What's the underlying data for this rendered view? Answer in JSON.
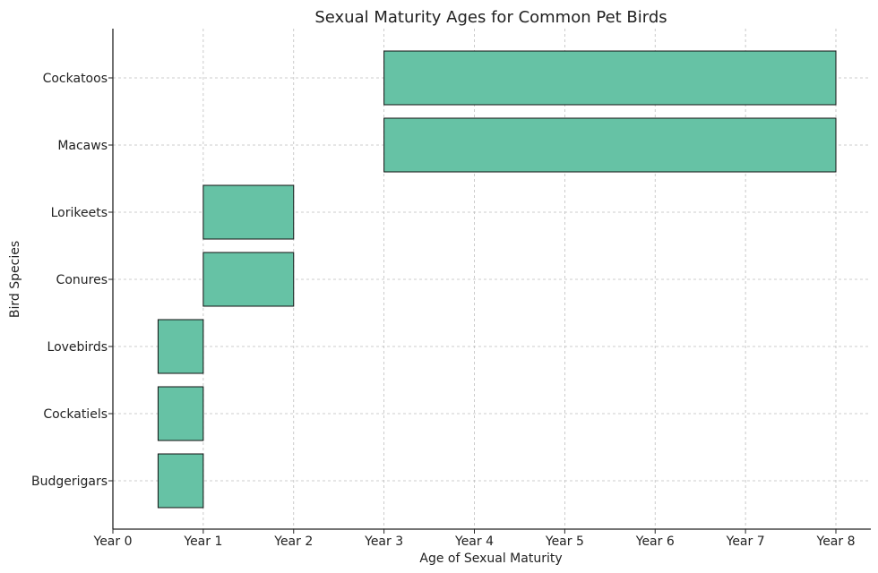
{
  "chart_data": {
    "type": "bar",
    "orientation": "horizontal",
    "title": "Sexual Maturity Ages for Common Pet Birds",
    "xlabel": "Age of Sexual Maturity",
    "ylabel": "Bird Species",
    "xlim": [
      0,
      8
    ],
    "x_tick_values": [
      0,
      1,
      2,
      3,
      4,
      5,
      6,
      7,
      8
    ],
    "x_tick_labels": [
      "Year 0",
      "Year 1",
      "Year 2",
      "Year 3",
      "Year 4",
      "Year 5",
      "Year 6",
      "Year 7",
      "Year 8"
    ],
    "categories": [
      "Budgerigars",
      "Cockatiels",
      "Lovebirds",
      "Conures",
      "Lorikeets",
      "Macaws",
      "Cockatoos"
    ],
    "ranges": [
      {
        "start": 0.5,
        "end": 1
      },
      {
        "start": 0.5,
        "end": 1
      },
      {
        "start": 0.5,
        "end": 1
      },
      {
        "start": 1,
        "end": 2
      },
      {
        "start": 1,
        "end": 2
      },
      {
        "start": 3,
        "end": 8
      },
      {
        "start": 3,
        "end": 8
      }
    ],
    "bar_color": "#66c2a5",
    "grid": true
  }
}
